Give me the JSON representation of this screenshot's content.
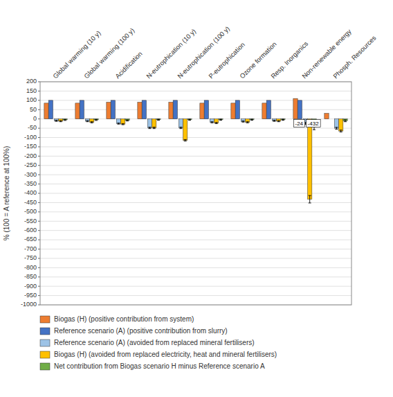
{
  "chart_data": {
    "type": "bar",
    "categories": [
      "Global warming (10 y)",
      "Global warming (100 y)",
      "Acidification",
      "N-eutrophication (10 y)",
      "N-eutrophication (100 y)",
      "P-eutrophication",
      "Ozone formation",
      "Resp. Inorganics",
      "Non-renewable energy",
      "Phosph. Resources"
    ],
    "series": [
      {
        "name": "Biogas (H) (positive contribution from system)",
        "color": "#ED7D31",
        "values": [
          85,
          85,
          90,
          90,
          90,
          85,
          85,
          85,
          110,
          30
        ]
      },
      {
        "name": "Reference scenario (A) (positive contribution from slurry)",
        "color": "#4472C4",
        "values": [
          100,
          100,
          100,
          100,
          100,
          100,
          100,
          100,
          100,
          0
        ]
      },
      {
        "name": "Reference scenario (A) (avoided from replaced mineral fertilisers)",
        "color": "#9DC3E6",
        "values": [
          -10,
          -12,
          -25,
          -48,
          -48,
          -18,
          -14,
          -10,
          -24,
          -50
        ],
        "errors": [
          3,
          3,
          3,
          4,
          4,
          3,
          3,
          3,
          5,
          5
        ]
      },
      {
        "name": "Biogas (H) (avoided from replaced electricity, heat and mineral fertilisers)",
        "color": "#FFC000",
        "values": [
          -12,
          -18,
          -28,
          -48,
          -115,
          -22,
          -18,
          -12,
          -432,
          -65
        ],
        "errors": [
          3,
          3,
          3,
          4,
          4,
          3,
          3,
          3,
          20,
          5
        ]
      },
      {
        "name": "Net contribution from Biogas scenario H minus Reference scenario A",
        "color": "#70AD47",
        "values": [
          -5,
          -5,
          -8,
          -4,
          -4,
          -4,
          -4,
          -4,
          -43,
          -10
        ],
        "errors": [
          3,
          3,
          3,
          3,
          3,
          3,
          3,
          3,
          15,
          5
        ]
      }
    ],
    "ylabel": "% (100 = A reference at 100%)",
    "ylim": [
      -1000,
      200
    ],
    "yticks": [
      200,
      150,
      100,
      50,
      0,
      -50,
      -100,
      -150,
      -200,
      -250,
      -300,
      -350,
      -400,
      -450,
      -500,
      -550,
      -600,
      -650,
      -700,
      -750,
      -800,
      -850,
      -900,
      -950,
      -1000
    ],
    "annotations": [
      {
        "text": "-24",
        "x": "Non-renewable energy",
        "y": -5,
        "series": "Reference scenario (A) (avoided from replaced mineral fertilisers)"
      },
      {
        "text": "-432",
        "x": "Non-renewable energy",
        "y": -5,
        "series": "Biogas (H) (avoided from replaced electricity, heat and mineral fertilisers)"
      }
    ],
    "grid": true,
    "legend": "bottom"
  }
}
